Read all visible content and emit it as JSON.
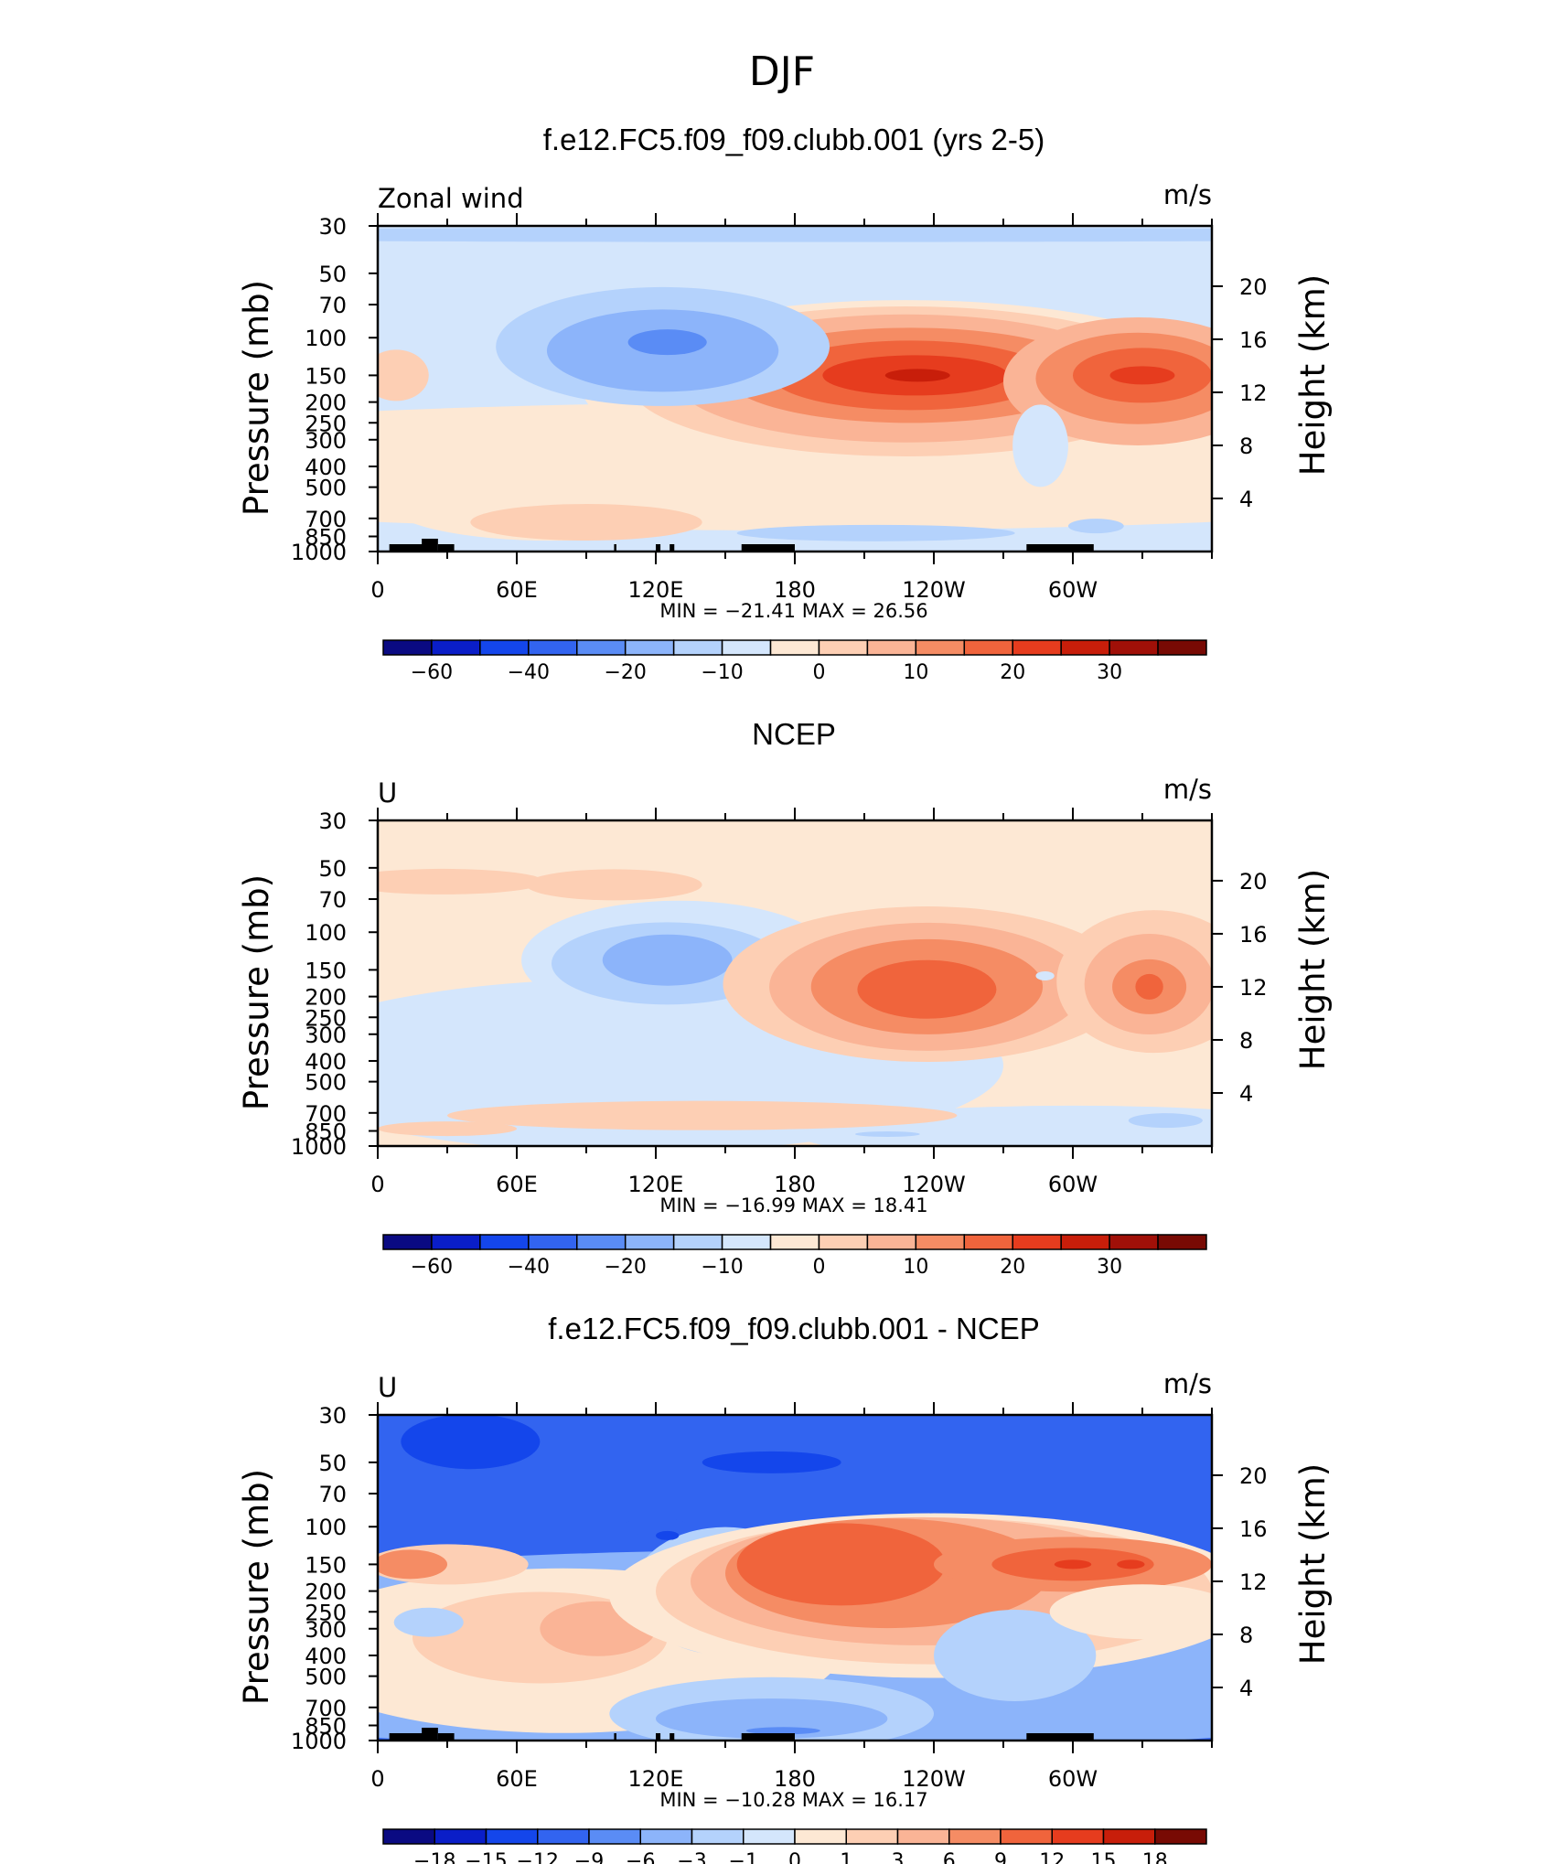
{
  "main_title": "DJF",
  "palettes": {
    "full": [
      "#0a0a82",
      "#0a1ec8",
      "#1446eb",
      "#3264f0",
      "#5a8cf5",
      "#8cb4fa",
      "#b4d2fc",
      "#d4e6fc",
      "#fde8d4",
      "#fdcfb4",
      "#fab496",
      "#f58c64",
      "#f0643c",
      "#e63c1e",
      "#c81e0a",
      "#a01008",
      "#780a04"
    ],
    "diff": [
      "#0a0a82",
      "#0a1ec8",
      "#1446eb",
      "#3264f0",
      "#5a8cf5",
      "#8cb4fa",
      "#b4d2fc",
      "#d4e6fc",
      "#fde8d4",
      "#fdcfb4",
      "#fab496",
      "#f58c64",
      "#f0643c",
      "#e63c1e",
      "#c81e0a",
      "#780a04"
    ]
  },
  "panels": [
    {
      "title": "f.e12.FC5.f09_f09.clubb.001 (yrs 2-5)",
      "left_label": "Zonal wind",
      "right_label": "m/s",
      "y_left_title": "Pressure (mb)",
      "y_right_title": "Height (km)",
      "stats": "MIN = −21.41   MAX =   26.56",
      "colorbar_labels": [
        "−60",
        "−40",
        "−20",
        "−10",
        "0",
        "10",
        "20",
        "30"
      ],
      "palette": "full",
      "topography": true
    },
    {
      "title": "NCEP",
      "left_label": "U",
      "right_label": "m/s",
      "y_left_title": "Pressure (mb)",
      "y_right_title": "Height (km)",
      "stats": "MIN = −16.99   MAX =   18.41",
      "colorbar_labels": [
        "−60",
        "−40",
        "−20",
        "−10",
        "0",
        "10",
        "20",
        "30"
      ],
      "palette": "full",
      "topography": false
    },
    {
      "title": "f.e12.FC5.f09_f09.clubb.001 - NCEP",
      "left_label": "U",
      "right_label": "m/s",
      "y_left_title": "Pressure (mb)",
      "y_right_title": "Height (km)",
      "stats": "MIN = −10.28   MAX =   16.17",
      "colorbar_labels": [
        "−18",
        "−15",
        "−12",
        "−9",
        "−6",
        "−3",
        "−1",
        "0",
        "1",
        "3",
        "6",
        "9",
        "12",
        "15",
        "18"
      ],
      "palette": "diff",
      "topography": true
    }
  ],
  "chart_data": [
    {
      "type": "heatmap",
      "title": "f.e12.FC5.f09_f09.clubb.001 (yrs 2-5)",
      "variable": "Zonal wind",
      "units": "m/s",
      "x_ticks": [
        "0",
        "60E",
        "120E",
        "180",
        "120W",
        "60W"
      ],
      "x_range_deg_east": [
        0,
        360
      ],
      "y_pressure_ticks": [
        30,
        50,
        70,
        100,
        150,
        200,
        250,
        300,
        400,
        500,
        700,
        850,
        1000
      ],
      "y_height_ticks": [
        20,
        16,
        12,
        8,
        4
      ],
      "levels": [
        -70,
        -60,
        -50,
        -40,
        -30,
        -20,
        -15,
        -10,
        -5,
        0,
        5,
        10,
        15,
        20,
        25,
        30,
        35
      ],
      "min": -21.41,
      "max": 26.56,
      "features": [
        {
          "kind": "max",
          "lon": 230,
          "p": 150,
          "value": 26.5
        },
        {
          "kind": "max",
          "lon": 328,
          "p": 150,
          "value": 22
        },
        {
          "kind": "min",
          "lon": 123,
          "p": 110,
          "value": -21
        }
      ]
    },
    {
      "type": "heatmap",
      "title": "NCEP",
      "variable": "U",
      "units": "m/s",
      "x_ticks": [
        "0",
        "60E",
        "120E",
        "180",
        "120W",
        "60W"
      ],
      "x_range_deg_east": [
        0,
        360
      ],
      "y_pressure_ticks": [
        30,
        50,
        70,
        100,
        150,
        200,
        250,
        300,
        400,
        500,
        700,
        850,
        1000
      ],
      "y_height_ticks": [
        20,
        16,
        12,
        8,
        4
      ],
      "levels": [
        -70,
        -60,
        -50,
        -40,
        -30,
        -20,
        -15,
        -10,
        -5,
        0,
        5,
        10,
        15,
        20,
        25,
        30,
        35
      ],
      "min": -16.99,
      "max": 18.41,
      "features": [
        {
          "kind": "max",
          "lon": 237,
          "p": 180,
          "value": 18.4
        },
        {
          "kind": "max",
          "lon": 333,
          "p": 180,
          "value": 17
        },
        {
          "kind": "min",
          "lon": 123,
          "p": 150,
          "value": -17
        }
      ]
    },
    {
      "type": "heatmap",
      "title": "f.e12.FC5.f09_f09.clubb.001 - NCEP",
      "variable": "U",
      "units": "m/s",
      "x_ticks": [
        "0",
        "60E",
        "120E",
        "180",
        "120W",
        "60W"
      ],
      "x_range_deg_east": [
        0,
        360
      ],
      "y_pressure_ticks": [
        30,
        50,
        70,
        100,
        150,
        200,
        250,
        300,
        400,
        500,
        700,
        850,
        1000
      ],
      "y_height_ticks": [
        20,
        16,
        12,
        8,
        4
      ],
      "levels": [
        -18,
        -15,
        -12,
        -9,
        -6,
        -3,
        -1,
        0,
        1,
        3,
        6,
        9,
        12,
        15,
        18
      ],
      "min": -10.28,
      "max": 16.17,
      "features": [
        {
          "kind": "max",
          "lon": 300,
          "p": 150,
          "value": 16.2
        },
        {
          "kind": "min",
          "lon": 175,
          "p": 850,
          "value": -10.3
        }
      ]
    }
  ]
}
